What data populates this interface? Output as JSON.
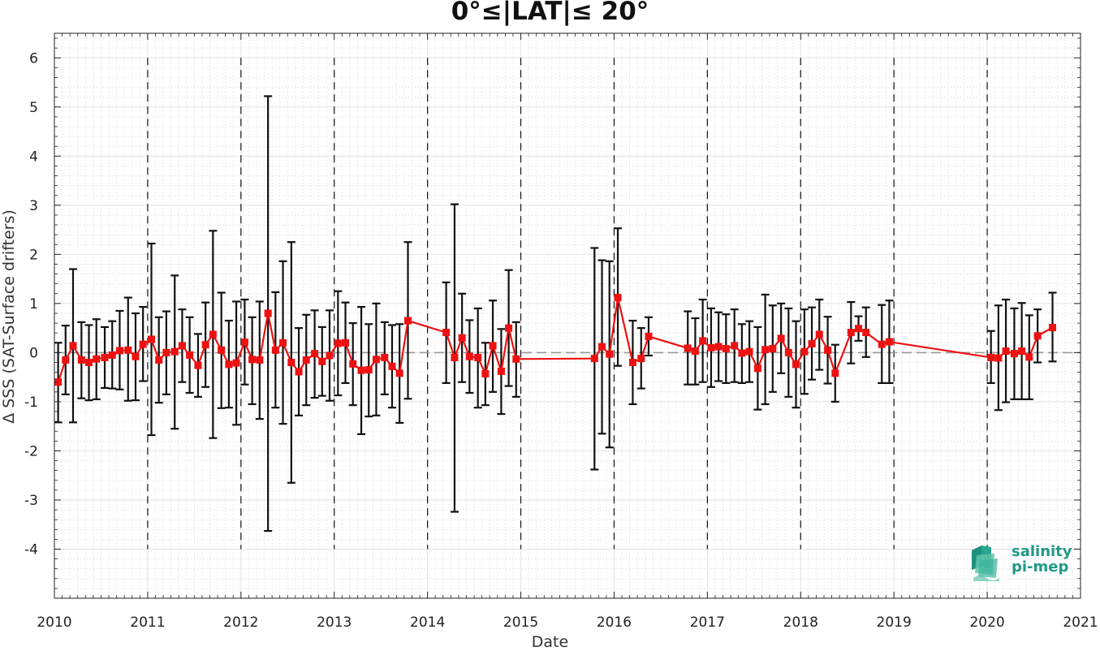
{
  "chart_data": {
    "type": "line",
    "title": "0°≤|LAT|≤ 20°",
    "xlabel": "Date",
    "ylabel": "Δ SSS (SAT-Surface drifters)",
    "xlim": [
      2010,
      2021
    ],
    "ylim": [
      -5,
      6.5
    ],
    "x_ticks": [
      2010,
      2011,
      2012,
      2013,
      2014,
      2015,
      2016,
      2017,
      2018,
      2019,
      2020,
      2021
    ],
    "x_tick_labels": [
      "2010",
      "2011",
      "2012",
      "2013",
      "2014",
      "2015",
      "2016",
      "2017",
      "2018",
      "2019",
      "2020",
      "2021"
    ],
    "y_ticks": [
      -4,
      -3,
      -2,
      -1,
      0,
      1,
      2,
      3,
      4,
      5,
      6
    ],
    "y_tick_labels": [
      "-4",
      "-3",
      "-2",
      "-1",
      "0",
      "1",
      "2",
      "3",
      "4",
      "5",
      "6"
    ],
    "grid": true,
    "reference_line": 0,
    "year_boundaries": [
      2011,
      2012,
      2013,
      2014,
      2015,
      2016,
      2017,
      2018,
      2019,
      2020
    ],
    "series": [
      {
        "color": "#ee1111",
        "errorbar_color": "#111111",
        "points": [
          {
            "x": 2010.04,
            "y": -0.6,
            "lo": -1.42,
            "hi": 0.2
          },
          {
            "x": 2010.12,
            "y": -0.15,
            "lo": -0.85,
            "hi": 0.55
          },
          {
            "x": 2010.2,
            "y": 0.14,
            "lo": -1.42,
            "hi": 1.7
          },
          {
            "x": 2010.29,
            "y": -0.15,
            "lo": -0.93,
            "hi": 0.62
          },
          {
            "x": 2010.37,
            "y": -0.2,
            "lo": -0.97,
            "hi": 0.56
          },
          {
            "x": 2010.45,
            "y": -0.13,
            "lo": -0.95,
            "hi": 0.68
          },
          {
            "x": 2010.54,
            "y": -0.1,
            "lo": -0.72,
            "hi": 0.52
          },
          {
            "x": 2010.62,
            "y": -0.05,
            "lo": -0.73,
            "hi": 0.64
          },
          {
            "x": 2010.7,
            "y": 0.04,
            "lo": -0.75,
            "hi": 0.85
          },
          {
            "x": 2010.79,
            "y": 0.05,
            "lo": -0.98,
            "hi": 1.12
          },
          {
            "x": 2010.87,
            "y": -0.08,
            "lo": -0.97,
            "hi": 0.8
          },
          {
            "x": 2010.95,
            "y": 0.17,
            "lo": -0.58,
            "hi": 0.93
          },
          {
            "x": 2011.04,
            "y": 0.27,
            "lo": -1.68,
            "hi": 2.22
          },
          {
            "x": 2011.12,
            "y": -0.15,
            "lo": -1.02,
            "hi": 0.72
          },
          {
            "x": 2011.2,
            "y": 0.0,
            "lo": -0.85,
            "hi": 0.84
          },
          {
            "x": 2011.29,
            "y": 0.02,
            "lo": -1.55,
            "hi": 1.57
          },
          {
            "x": 2011.37,
            "y": 0.14,
            "lo": -0.6,
            "hi": 0.88
          },
          {
            "x": 2011.45,
            "y": -0.05,
            "lo": -0.82,
            "hi": 0.72
          },
          {
            "x": 2011.54,
            "y": -0.26,
            "lo": -0.9,
            "hi": 0.38
          },
          {
            "x": 2011.62,
            "y": 0.16,
            "lo": -0.7,
            "hi": 1.02
          },
          {
            "x": 2011.7,
            "y": 0.37,
            "lo": -1.74,
            "hi": 2.48
          },
          {
            "x": 2011.79,
            "y": 0.05,
            "lo": -1.13,
            "hi": 1.22
          },
          {
            "x": 2011.87,
            "y": -0.24,
            "lo": -1.12,
            "hi": 0.65
          },
          {
            "x": 2011.95,
            "y": -0.21,
            "lo": -1.47,
            "hi": 1.04
          },
          {
            "x": 2012.04,
            "y": 0.21,
            "lo": -0.65,
            "hi": 1.08
          },
          {
            "x": 2012.12,
            "y": -0.14,
            "lo": -1.05,
            "hi": 0.72
          },
          {
            "x": 2012.2,
            "y": -0.15,
            "lo": -1.35,
            "hi": 1.04
          },
          {
            "x": 2012.29,
            "y": 0.8,
            "lo": -3.63,
            "hi": 5.22
          },
          {
            "x": 2012.37,
            "y": 0.05,
            "lo": -1.12,
            "hi": 1.23
          },
          {
            "x": 2012.45,
            "y": 0.2,
            "lo": -1.45,
            "hi": 1.86
          },
          {
            "x": 2012.54,
            "y": -0.2,
            "lo": -2.65,
            "hi": 2.25
          },
          {
            "x": 2012.62,
            "y": -0.39,
            "lo": -1.28,
            "hi": 0.5
          },
          {
            "x": 2012.7,
            "y": -0.15,
            "lo": -1.07,
            "hi": 0.77
          },
          {
            "x": 2012.79,
            "y": -0.02,
            "lo": -0.92,
            "hi": 0.86
          },
          {
            "x": 2012.87,
            "y": -0.18,
            "lo": -0.88,
            "hi": 0.52
          },
          {
            "x": 2012.95,
            "y": -0.06,
            "lo": -0.98,
            "hi": 0.86
          },
          {
            "x": 2013.04,
            "y": 0.19,
            "lo": -0.87,
            "hi": 1.25
          },
          {
            "x": 2013.12,
            "y": 0.2,
            "lo": -0.62,
            "hi": 1.02
          },
          {
            "x": 2013.2,
            "y": -0.23,
            "lo": -1.07,
            "hi": 0.6
          },
          {
            "x": 2013.29,
            "y": -0.36,
            "lo": -1.66,
            "hi": 0.93
          },
          {
            "x": 2013.37,
            "y": -0.35,
            "lo": -1.3,
            "hi": 0.58
          },
          {
            "x": 2013.45,
            "y": -0.14,
            "lo": -1.28,
            "hi": 1.0
          },
          {
            "x": 2013.54,
            "y": -0.1,
            "lo": -0.85,
            "hi": 0.62
          },
          {
            "x": 2013.62,
            "y": -0.28,
            "lo": -1.12,
            "hi": 0.56
          },
          {
            "x": 2013.7,
            "y": -0.42,
            "lo": -1.43,
            "hi": 0.58
          },
          {
            "x": 2013.79,
            "y": 0.65,
            "lo": -0.94,
            "hi": 2.25
          },
          {
            "x": 2014.2,
            "y": 0.41,
            "lo": -0.62,
            "hi": 1.43
          },
          {
            "x": 2014.29,
            "y": -0.1,
            "lo": -3.24,
            "hi": 3.02
          },
          {
            "x": 2014.37,
            "y": 0.3,
            "lo": -0.6,
            "hi": 1.2
          },
          {
            "x": 2014.45,
            "y": -0.08,
            "lo": -0.82,
            "hi": 0.66
          },
          {
            "x": 2014.54,
            "y": -0.1,
            "lo": -1.12,
            "hi": 0.9
          },
          {
            "x": 2014.62,
            "y": -0.43,
            "lo": -1.07,
            "hi": 0.2
          },
          {
            "x": 2014.7,
            "y": 0.14,
            "lo": -0.8,
            "hi": 1.06
          },
          {
            "x": 2014.79,
            "y": -0.38,
            "lo": -1.25,
            "hi": 0.48
          },
          {
            "x": 2014.87,
            "y": 0.5,
            "lo": -0.68,
            "hi": 1.68
          },
          {
            "x": 2014.95,
            "y": -0.13,
            "lo": -0.9,
            "hi": 0.62
          },
          {
            "x": 2015.79,
            "y": -0.12,
            "lo": -2.38,
            "hi": 2.13
          },
          {
            "x": 2015.87,
            "y": 0.12,
            "lo": -1.65,
            "hi": 1.88
          },
          {
            "x": 2015.95,
            "y": -0.03,
            "lo": -1.93,
            "hi": 1.86
          },
          {
            "x": 2016.04,
            "y": 1.12,
            "lo": -0.27,
            "hi": 2.53
          },
          {
            "x": 2016.2,
            "y": -0.2,
            "lo": -1.05,
            "hi": 0.65
          },
          {
            "x": 2016.29,
            "y": -0.12,
            "lo": -0.73,
            "hi": 0.5
          },
          {
            "x": 2016.37,
            "y": 0.33,
            "lo": -0.06,
            "hi": 0.72
          },
          {
            "x": 2016.79,
            "y": 0.09,
            "lo": -0.65,
            "hi": 0.84
          },
          {
            "x": 2016.87,
            "y": 0.03,
            "lo": -0.65,
            "hi": 0.7
          },
          {
            "x": 2016.95,
            "y": 0.24,
            "lo": -0.6,
            "hi": 1.08
          },
          {
            "x": 2017.04,
            "y": 0.1,
            "lo": -0.7,
            "hi": 0.9
          },
          {
            "x": 2017.12,
            "y": 0.12,
            "lo": -0.58,
            "hi": 0.82
          },
          {
            "x": 2017.2,
            "y": 0.08,
            "lo": -0.62,
            "hi": 0.78
          },
          {
            "x": 2017.29,
            "y": 0.14,
            "lo": -0.6,
            "hi": 0.88
          },
          {
            "x": 2017.37,
            "y": -0.01,
            "lo": -0.62,
            "hi": 0.58
          },
          {
            "x": 2017.45,
            "y": 0.02,
            "lo": -0.6,
            "hi": 0.64
          },
          {
            "x": 2017.54,
            "y": -0.32,
            "lo": -1.16,
            "hi": 0.52
          },
          {
            "x": 2017.62,
            "y": 0.06,
            "lo": -1.05,
            "hi": 1.18
          },
          {
            "x": 2017.7,
            "y": 0.08,
            "lo": -0.8,
            "hi": 0.96
          },
          {
            "x": 2017.79,
            "y": 0.29,
            "lo": -0.42,
            "hi": 1.0
          },
          {
            "x": 2017.87,
            "y": 0.0,
            "lo": -0.9,
            "hi": 0.9
          },
          {
            "x": 2017.95,
            "y": -0.24,
            "lo": -1.12,
            "hi": 0.64
          },
          {
            "x": 2018.04,
            "y": 0.02,
            "lo": -0.84,
            "hi": 0.88
          },
          {
            "x": 2018.12,
            "y": 0.18,
            "lo": -0.55,
            "hi": 0.92
          },
          {
            "x": 2018.2,
            "y": 0.37,
            "lo": -0.35,
            "hi": 1.08
          },
          {
            "x": 2018.29,
            "y": 0.05,
            "lo": -0.63,
            "hi": 0.73
          },
          {
            "x": 2018.37,
            "y": -0.42,
            "lo": -1.0,
            "hi": 0.16
          },
          {
            "x": 2018.54,
            "y": 0.41,
            "lo": -0.22,
            "hi": 1.03
          },
          {
            "x": 2018.62,
            "y": 0.49,
            "lo": 0.24,
            "hi": 0.74
          },
          {
            "x": 2018.7,
            "y": 0.41,
            "lo": -0.09,
            "hi": 0.92
          },
          {
            "x": 2018.87,
            "y": 0.17,
            "lo": -0.62,
            "hi": 0.97
          },
          {
            "x": 2018.95,
            "y": 0.22,
            "lo": -0.62,
            "hi": 1.06
          },
          {
            "x": 2020.04,
            "y": -0.1,
            "lo": -0.62,
            "hi": 0.44
          },
          {
            "x": 2020.12,
            "y": -0.11,
            "lo": -1.17,
            "hi": 0.96
          },
          {
            "x": 2020.2,
            "y": 0.03,
            "lo": -1.01,
            "hi": 1.08
          },
          {
            "x": 2020.29,
            "y": -0.02,
            "lo": -0.95,
            "hi": 0.9
          },
          {
            "x": 2020.37,
            "y": 0.03,
            "lo": -0.95,
            "hi": 1.01
          },
          {
            "x": 2020.45,
            "y": -0.09,
            "lo": -0.95,
            "hi": 0.76
          },
          {
            "x": 2020.54,
            "y": 0.34,
            "lo": -0.2,
            "hi": 0.88
          },
          {
            "x": 2020.7,
            "y": 0.51,
            "lo": -0.18,
            "hi": 1.22
          }
        ]
      }
    ]
  },
  "logo": {
    "line1": "salinity",
    "line2": "pi-mep",
    "color": "#1f9a86"
  }
}
